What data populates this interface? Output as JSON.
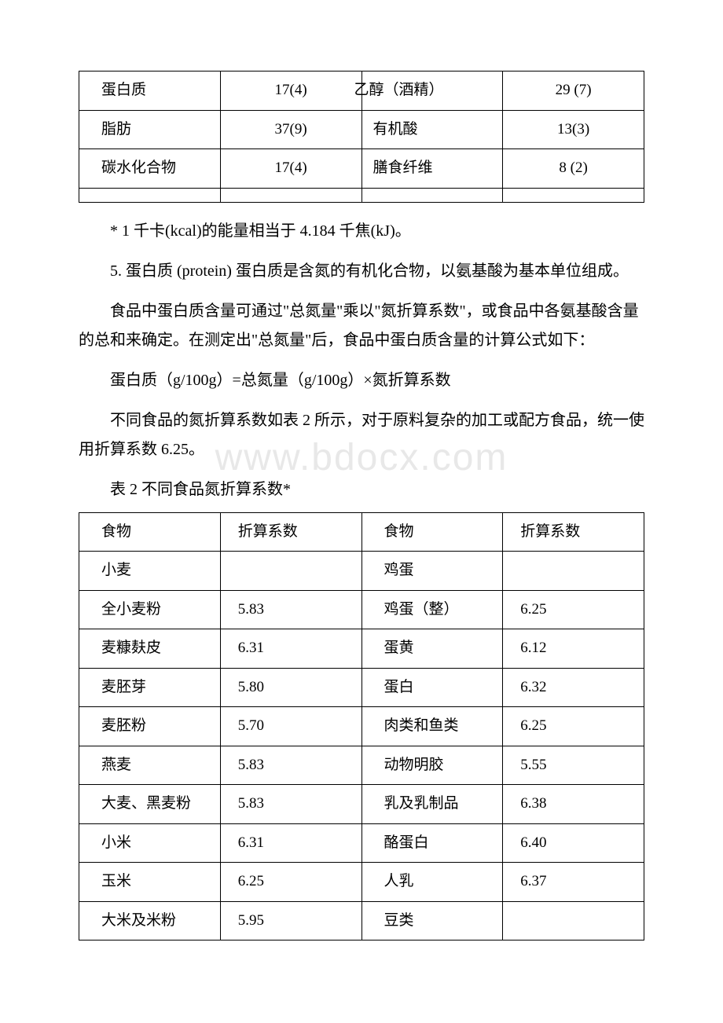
{
  "watermark": "www.bdocx.com",
  "table1": {
    "rows": [
      [
        "蛋白质",
        "17(4)",
        "乙醇（酒精）",
        "29 (7)"
      ],
      [
        "脂肪",
        "37(9)",
        "有机酸",
        "13(3)"
      ],
      [
        "碳水化合物",
        "17(4)",
        "膳食纤维",
        "8 (2)"
      ]
    ]
  },
  "para1": "* 1 千卡(kcal)的能量相当于 4.184 千焦(kJ)。",
  "para2": "5. 蛋白质 (protein) 蛋白质是含氮的有机化合物，以氨基酸为基本单位组成。",
  "para3": "食品中蛋白质含量可通过\"总氮量\"乘以\"氮折算系数\"，或食品中各氨基酸含量的总和来确定。在测定出\"总氮量\"后，食品中蛋白质含量的计算公式如下：",
  "para4": "蛋白质（g/100g）=总氮量（g/100g）×氮折算系数",
  "para5": "不同食品的氮折算系数如表 2 所示，对于原料复杂的加工或配方食品，统一使用折算系数 6.25。",
  "table2_caption": "表 2 不同食品氮折算系数*",
  "table2": {
    "header": [
      "食物",
      "折算系数",
      "食物",
      "折算系数"
    ],
    "rows": [
      [
        "小麦",
        "",
        "鸡蛋",
        ""
      ],
      [
        "全小麦粉",
        "5.83",
        "鸡蛋（整）",
        "6.25"
      ],
      [
        "麦糠麸皮",
        "6.31",
        "蛋黄",
        "6.12"
      ],
      [
        "麦胚芽",
        "5.80",
        "蛋白",
        "6.32"
      ],
      [
        "麦胚粉",
        "5.70",
        "肉类和鱼类",
        "6.25"
      ],
      [
        "燕麦",
        "5.83",
        "动物明胶",
        "5.55"
      ],
      [
        "大麦、黑麦粉",
        "5.83",
        "乳及乳制品",
        "6.38"
      ],
      [
        "小米",
        "6.31",
        "酪蛋白",
        "6.40"
      ],
      [
        "玉米",
        "6.25",
        "人乳",
        "6.37"
      ],
      [
        "大米及米粉",
        "5.95",
        "豆类",
        ""
      ]
    ]
  }
}
